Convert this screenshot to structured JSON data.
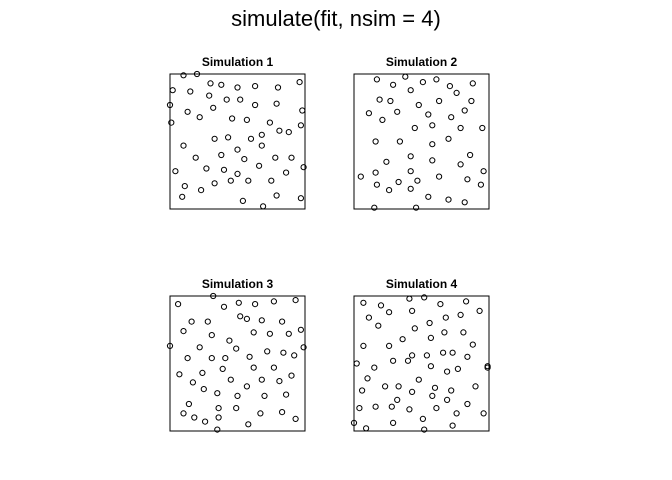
{
  "figure": {
    "title": "simulate(fit, nsim = 4)"
  },
  "chart_data": [
    {
      "type": "scatter",
      "title": "Simulation 1",
      "xlim": [
        0,
        1
      ],
      "ylim": [
        0,
        1
      ],
      "grid": false,
      "points": [
        [
          0.1,
          0.99
        ],
        [
          0.2,
          1.0
        ],
        [
          0.02,
          0.88
        ],
        [
          0.15,
          0.87
        ],
        [
          0.29,
          0.84
        ],
        [
          0.38,
          0.92
        ],
        [
          0.5,
          0.9
        ],
        [
          0.63,
          0.91
        ],
        [
          0.8,
          0.9
        ],
        [
          0.96,
          0.94
        ],
        [
          0.3,
          0.93
        ],
        [
          0.0,
          0.77
        ],
        [
          0.13,
          0.72
        ],
        [
          0.32,
          0.75
        ],
        [
          0.42,
          0.81
        ],
        [
          0.52,
          0.81
        ],
        [
          0.63,
          0.77
        ],
        [
          0.79,
          0.78
        ],
        [
          0.98,
          0.73
        ],
        [
          0.22,
          0.68
        ],
        [
          0.01,
          0.64
        ],
        [
          0.46,
          0.67
        ],
        [
          0.57,
          0.66
        ],
        [
          0.74,
          0.64
        ],
        [
          0.97,
          0.62
        ],
        [
          0.81,
          0.58
        ],
        [
          0.68,
          0.55
        ],
        [
          0.43,
          0.53
        ],
        [
          0.33,
          0.52
        ],
        [
          0.6,
          0.52
        ],
        [
          0.88,
          0.57
        ],
        [
          0.1,
          0.47
        ],
        [
          0.19,
          0.38
        ],
        [
          0.38,
          0.4
        ],
        [
          0.5,
          0.44
        ],
        [
          0.68,
          0.47
        ],
        [
          0.78,
          0.38
        ],
        [
          0.9,
          0.38
        ],
        [
          0.55,
          0.37
        ],
        [
          0.99,
          0.31
        ],
        [
          0.04,
          0.28
        ],
        [
          0.27,
          0.3
        ],
        [
          0.4,
          0.29
        ],
        [
          0.5,
          0.26
        ],
        [
          0.66,
          0.32
        ],
        [
          0.11,
          0.17
        ],
        [
          0.23,
          0.14
        ],
        [
          0.33,
          0.19
        ],
        [
          0.45,
          0.21
        ],
        [
          0.58,
          0.21
        ],
        [
          0.75,
          0.21
        ],
        [
          0.86,
          0.27
        ],
        [
          0.97,
          0.08
        ],
        [
          0.09,
          0.09
        ],
        [
          0.69,
          0.02
        ],
        [
          0.54,
          0.06
        ],
        [
          0.79,
          0.1
        ]
      ]
    },
    {
      "type": "scatter",
      "title": "Simulation 2",
      "xlim": [
        0,
        1
      ],
      "ylim": [
        0,
        1
      ],
      "grid": false,
      "points": [
        [
          0.17,
          0.96
        ],
        [
          0.29,
          0.92
        ],
        [
          0.38,
          0.98
        ],
        [
          0.51,
          0.94
        ],
        [
          0.61,
          0.96
        ],
        [
          0.71,
          0.91
        ],
        [
          0.88,
          0.93
        ],
        [
          0.19,
          0.81
        ],
        [
          0.27,
          0.8
        ],
        [
          0.42,
          0.88
        ],
        [
          0.63,
          0.8
        ],
        [
          0.76,
          0.86
        ],
        [
          0.87,
          0.8
        ],
        [
          0.11,
          0.71
        ],
        [
          0.32,
          0.72
        ],
        [
          0.48,
          0.77
        ],
        [
          0.55,
          0.7
        ],
        [
          0.72,
          0.68
        ],
        [
          0.82,
          0.73
        ],
        [
          0.95,
          0.6
        ],
        [
          0.21,
          0.66
        ],
        [
          0.45,
          0.6
        ],
        [
          0.58,
          0.62
        ],
        [
          0.79,
          0.6
        ],
        [
          0.16,
          0.5
        ],
        [
          0.34,
          0.5
        ],
        [
          0.42,
          0.39
        ],
        [
          0.58,
          0.48
        ],
        [
          0.7,
          0.52
        ],
        [
          0.86,
          0.4
        ],
        [
          0.24,
          0.35
        ],
        [
          0.42,
          0.28
        ],
        [
          0.58,
          0.36
        ],
        [
          0.79,
          0.33
        ],
        [
          0.96,
          0.28
        ],
        [
          0.05,
          0.24
        ],
        [
          0.16,
          0.27
        ],
        [
          0.33,
          0.2
        ],
        [
          0.47,
          0.21
        ],
        [
          0.63,
          0.24
        ],
        [
          0.84,
          0.22
        ],
        [
          0.94,
          0.18
        ],
        [
          0.17,
          0.18
        ],
        [
          0.26,
          0.14
        ],
        [
          0.42,
          0.15
        ],
        [
          0.55,
          0.09
        ],
        [
          0.7,
          0.07
        ],
        [
          0.82,
          0.05
        ],
        [
          0.46,
          0.01
        ],
        [
          0.15,
          0.01
        ]
      ]
    },
    {
      "type": "scatter",
      "title": "Simulation 3",
      "xlim": [
        0,
        1
      ],
      "ylim": [
        0,
        1
      ],
      "grid": false,
      "points": [
        [
          0.06,
          0.94
        ],
        [
          0.32,
          1.0
        ],
        [
          0.51,
          0.95
        ],
        [
          0.63,
          0.94
        ],
        [
          0.77,
          0.96
        ],
        [
          0.93,
          0.97
        ],
        [
          0.4,
          0.92
        ],
        [
          0.52,
          0.85
        ],
        [
          0.16,
          0.81
        ],
        [
          0.28,
          0.81
        ],
        [
          0.57,
          0.83
        ],
        [
          0.68,
          0.82
        ],
        [
          0.83,
          0.81
        ],
        [
          0.97,
          0.75
        ],
        [
          0.1,
          0.74
        ],
        [
          0.31,
          0.71
        ],
        [
          0.44,
          0.67
        ],
        [
          0.62,
          0.73
        ],
        [
          0.74,
          0.72
        ],
        [
          0.88,
          0.72
        ],
        [
          0.99,
          0.62
        ],
        [
          0.0,
          0.63
        ],
        [
          0.22,
          0.62
        ],
        [
          0.49,
          0.61
        ],
        [
          0.92,
          0.56
        ],
        [
          0.13,
          0.54
        ],
        [
          0.31,
          0.54
        ],
        [
          0.41,
          0.54
        ],
        [
          0.59,
          0.55
        ],
        [
          0.72,
          0.59
        ],
        [
          0.84,
          0.58
        ],
        [
          0.24,
          0.43
        ],
        [
          0.39,
          0.46
        ],
        [
          0.62,
          0.47
        ],
        [
          0.77,
          0.47
        ],
        [
          0.9,
          0.41
        ],
        [
          0.07,
          0.42
        ],
        [
          0.17,
          0.36
        ],
        [
          0.45,
          0.38
        ],
        [
          0.68,
          0.38
        ],
        [
          0.57,
          0.33
        ],
        [
          0.81,
          0.37
        ],
        [
          0.25,
          0.31
        ],
        [
          0.14,
          0.2
        ],
        [
          0.35,
          0.28
        ],
        [
          0.5,
          0.26
        ],
        [
          0.7,
          0.26
        ],
        [
          0.86,
          0.27
        ],
        [
          0.1,
          0.13
        ],
        [
          0.36,
          0.17
        ],
        [
          0.49,
          0.17
        ],
        [
          0.67,
          0.13
        ],
        [
          0.83,
          0.14
        ],
        [
          0.18,
          0.1
        ],
        [
          0.36,
          0.1
        ],
        [
          0.26,
          0.07
        ],
        [
          0.58,
          0.05
        ],
        [
          0.93,
          0.09
        ],
        [
          0.35,
          0.01
        ]
      ]
    },
    {
      "type": "scatter",
      "title": "Simulation 4",
      "xlim": [
        0,
        1
      ],
      "ylim": [
        0,
        1
      ],
      "grid": false,
      "points": [
        [
          0.07,
          0.95
        ],
        [
          0.2,
          0.93
        ],
        [
          0.41,
          0.98
        ],
        [
          0.52,
          0.99
        ],
        [
          0.64,
          0.94
        ],
        [
          0.83,
          0.96
        ],
        [
          0.11,
          0.84
        ],
        [
          0.26,
          0.88
        ],
        [
          0.43,
          0.89
        ],
        [
          0.56,
          0.8
        ],
        [
          0.68,
          0.84
        ],
        [
          0.79,
          0.86
        ],
        [
          0.93,
          0.89
        ],
        [
          0.18,
          0.78
        ],
        [
          0.45,
          0.76
        ],
        [
          0.67,
          0.73
        ],
        [
          0.81,
          0.73
        ],
        [
          0.36,
          0.68
        ],
        [
          0.57,
          0.69
        ],
        [
          0.88,
          0.64
        ],
        [
          0.07,
          0.63
        ],
        [
          0.26,
          0.63
        ],
        [
          0.43,
          0.56
        ],
        [
          0.54,
          0.56
        ],
        [
          0.66,
          0.58
        ],
        [
          0.73,
          0.58
        ],
        [
          0.84,
          0.55
        ],
        [
          0.99,
          0.47
        ],
        [
          0.02,
          0.5
        ],
        [
          0.15,
          0.47
        ],
        [
          0.29,
          0.52
        ],
        [
          0.4,
          0.52
        ],
        [
          0.57,
          0.48
        ],
        [
          0.69,
          0.44
        ],
        [
          0.77,
          0.46
        ],
        [
          0.99,
          0.48
        ],
        [
          0.1,
          0.39
        ],
        [
          0.23,
          0.33
        ],
        [
          0.33,
          0.33
        ],
        [
          0.48,
          0.38
        ],
        [
          0.6,
          0.32
        ],
        [
          0.72,
          0.3
        ],
        [
          0.9,
          0.33
        ],
        [
          0.06,
          0.3
        ],
        [
          0.16,
          0.18
        ],
        [
          0.32,
          0.23
        ],
        [
          0.43,
          0.29
        ],
        [
          0.58,
          0.26
        ],
        [
          0.69,
          0.23
        ],
        [
          0.84,
          0.2
        ],
        [
          0.96,
          0.13
        ],
        [
          0.04,
          0.17
        ],
        [
          0.28,
          0.18
        ],
        [
          0.41,
          0.16
        ],
        [
          0.61,
          0.17
        ],
        [
          0.76,
          0.13
        ],
        [
          0.29,
          0.06
        ],
        [
          0.51,
          0.09
        ],
        [
          0.73,
          0.04
        ],
        [
          0.09,
          0.02
        ],
        [
          0.52,
          0.01
        ],
        [
          0.0,
          0.06
        ]
      ]
    }
  ]
}
